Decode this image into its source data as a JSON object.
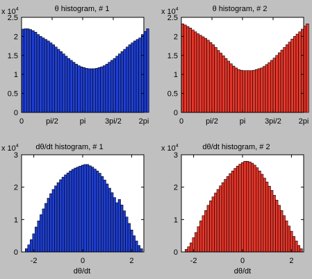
{
  "figure": {
    "background": "#c0c0c0",
    "axes_background": "#ffffff"
  },
  "chart_data": [
    {
      "type": "bar",
      "title": "θ histogram, # 1",
      "exponent_label": "x 10",
      "exponent_power": "4",
      "xlabel": "",
      "ylabel": "",
      "xlim": [
        0,
        6.2832
      ],
      "ylim": [
        0,
        2.5
      ],
      "y_scale_multiplier": 10000,
      "xticks": [
        0,
        1.5708,
        3.1416,
        4.7124,
        6.2832
      ],
      "xtick_labels": [
        "0",
        "pi/2",
        "pi",
        "3pi/2",
        "2pi"
      ],
      "yticks": [
        0,
        0.5,
        1,
        1.5,
        2,
        2.5
      ],
      "ytick_labels": [
        "0",
        "0.5",
        "1",
        "1.5",
        "2",
        "2.5"
      ],
      "bar_color": "#1f3fd4",
      "bin_start": 0,
      "bin_width": 0.1309,
      "values": [
        2.19,
        2.2,
        2.2,
        2.18,
        2.15,
        2.11,
        2.05,
        2.0,
        1.96,
        1.92,
        1.88,
        1.83,
        1.78,
        1.72,
        1.66,
        1.6,
        1.54,
        1.48,
        1.42,
        1.37,
        1.32,
        1.27,
        1.23,
        1.2,
        1.18,
        1.16,
        1.15,
        1.15,
        1.15,
        1.16,
        1.18,
        1.2,
        1.23,
        1.27,
        1.32,
        1.37,
        1.42,
        1.48,
        1.54,
        1.6,
        1.66,
        1.72,
        1.78,
        1.83,
        1.88,
        1.92,
        1.96,
        2.05,
        2.13,
        2.2
      ]
    },
    {
      "type": "bar",
      "title": "θ histogram, # 2",
      "exponent_label": "x 10",
      "exponent_power": "4",
      "xlabel": "",
      "ylabel": "",
      "xlim": [
        0,
        6.2832
      ],
      "ylim": [
        0,
        2.5
      ],
      "y_scale_multiplier": 10000,
      "xticks": [
        0,
        1.5708,
        3.1416,
        4.7124,
        6.2832
      ],
      "xtick_labels": [
        "0",
        "pi/2",
        "pi",
        "3pi/2",
        "2pi"
      ],
      "yticks": [
        0,
        0.5,
        1,
        1.5,
        2,
        2.5
      ],
      "ytick_labels": [
        "0",
        "0.5",
        "1",
        "1.5",
        "2",
        "2.5"
      ],
      "bar_color": "#e8362a",
      "bin_start": 0,
      "bin_width": 0.1309,
      "values": [
        2.33,
        2.3,
        2.26,
        2.22,
        2.17,
        2.12,
        2.07,
        2.03,
        1.99,
        1.95,
        1.9,
        1.84,
        1.78,
        1.71,
        1.63,
        1.56,
        1.49,
        1.42,
        1.35,
        1.28,
        1.22,
        1.17,
        1.13,
        1.11,
        1.1,
        1.1,
        1.1,
        1.1,
        1.11,
        1.13,
        1.15,
        1.17,
        1.21,
        1.26,
        1.31,
        1.37,
        1.43,
        1.5,
        1.57,
        1.64,
        1.71,
        1.78,
        1.85,
        1.93,
        2.0,
        2.06,
        2.12,
        2.19,
        2.27,
        2.33
      ]
    },
    {
      "type": "bar",
      "title": "dθ/dt histogram, # 1",
      "exponent_label": "x 10",
      "exponent_power": "4",
      "xlabel": "dθ/dt",
      "ylabel": "",
      "xlim": [
        -2.5,
        2.5
      ],
      "ylim": [
        0,
        3
      ],
      "y_scale_multiplier": 10000,
      "xticks": [
        -2,
        0,
        2
      ],
      "xtick_labels": [
        "-2",
        "0",
        "2"
      ],
      "yticks": [
        0,
        1,
        2,
        3
      ],
      "ytick_labels": [
        "0",
        "1",
        "2",
        "3"
      ],
      "bar_color": "#1f3fd4",
      "bin_start": -2.35,
      "bin_width": 0.1,
      "values": [
        0.1,
        0.22,
        0.38,
        0.56,
        0.77,
        0.96,
        1.15,
        1.33,
        1.5,
        1.66,
        1.8,
        1.93,
        2.04,
        2.14,
        2.23,
        2.31,
        2.38,
        2.44,
        2.5,
        2.55,
        2.59,
        2.62,
        2.65,
        2.68,
        2.7,
        2.7,
        2.66,
        2.62,
        2.56,
        2.5,
        2.43,
        2.33,
        2.22,
        2.1,
        1.97,
        1.83,
        1.68,
        1.52,
        1.62,
        1.45,
        1.27,
        1.08,
        0.88,
        0.68,
        0.5,
        0.34,
        0.2,
        0.1
      ]
    },
    {
      "type": "bar",
      "title": "dθ/dt histogram, # 2",
      "exponent_label": "x 10",
      "exponent_power": "4",
      "xlabel": "dθ/dt",
      "ylabel": "",
      "xlim": [
        -2.5,
        2.5
      ],
      "ylim": [
        0,
        3
      ],
      "y_scale_multiplier": 10000,
      "xticks": [
        -2,
        0,
        2
      ],
      "xtick_labels": [
        "-2",
        "0",
        "2"
      ],
      "yticks": [
        0,
        1,
        2,
        3
      ],
      "ytick_labels": [
        "0",
        "1",
        "2",
        "3"
      ],
      "bar_color": "#e8362a",
      "bin_start": -2.35,
      "bin_width": 0.1,
      "values": [
        0.08,
        0.16,
        0.28,
        0.44,
        0.6,
        0.78,
        0.96,
        1.12,
        1.28,
        1.44,
        1.58,
        1.7,
        1.82,
        1.93,
        2.04,
        2.14,
        2.24,
        2.33,
        2.42,
        2.5,
        2.58,
        2.65,
        2.71,
        2.76,
        2.8,
        2.8,
        2.78,
        2.74,
        2.68,
        2.6,
        2.5,
        2.4,
        2.28,
        2.16,
        2.03,
        1.9,
        1.75,
        1.6,
        1.44,
        1.28,
        1.12,
        0.96,
        0.8,
        0.64,
        0.48,
        0.34,
        0.2,
        0.1
      ]
    }
  ]
}
